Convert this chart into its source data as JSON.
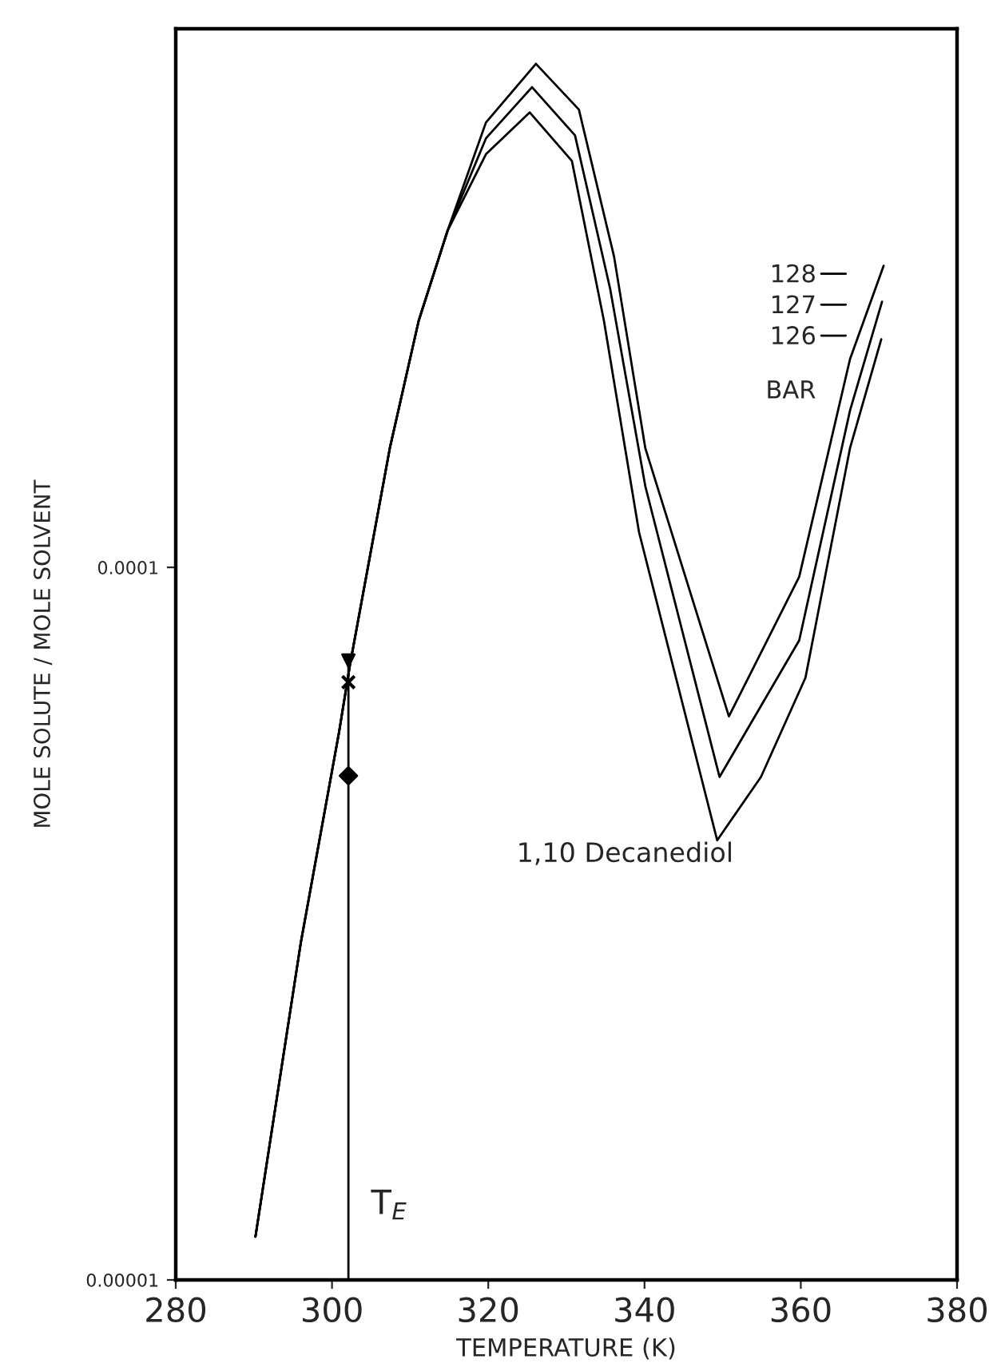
{
  "chart_data": {
    "type": "line",
    "xlabel": "TEMPERATURE (K)",
    "ylabel": "MOLE SOLUTE / MOLE SOLVENT",
    "xlim": [
      280,
      380
    ],
    "xticks": [
      280,
      300,
      320,
      340,
      360,
      380
    ],
    "ylim": [
      1e-05,
      0.00057
    ],
    "yticks": [
      {
        "value": 1e-05,
        "label": "0.00001"
      },
      {
        "value": 0.0001,
        "label": "0.0001"
      }
    ],
    "log": "y",
    "grid": false,
    "legend": "top right",
    "marker": "none",
    "line_style": "solid",
    "series": [
      {
        "name": "128",
        "color": "#000000",
        "x": [
          290.2,
          296.0,
          300.9,
          302.3,
          307.4,
          311.1,
          314.8,
          319.7,
          326.1,
          331.6,
          336.1,
          340.1,
          350.8,
          359.8,
          366.3,
          370.6
        ],
        "values": [
          1.15e-05,
          2.97e-05,
          5.87e-05,
          7.3e-05,
          0.000147,
          0.000222,
          0.000297,
          0.000421,
          0.000509,
          0.000439,
          0.000273,
          0.000147,
          6.18e-05,
          9.7e-05,
          0.000196,
          0.000265
        ]
      },
      {
        "name": "127",
        "color": "#000000",
        "x": [
          290.2,
          296.0,
          300.9,
          302.3,
          307.4,
          311.1,
          314.8,
          319.7,
          325.6,
          331.1,
          335.6,
          340.1,
          349.6,
          359.8,
          366.3,
          370.4
        ],
        "values": [
          1.15e-05,
          2.97e-05,
          5.87e-05,
          7.3e-05,
          0.000147,
          0.000222,
          0.000297,
          0.0004,
          0.000472,
          0.000404,
          0.000246,
          0.00013,
          5.08e-05,
          7.9e-05,
          0.000166,
          0.000236
        ]
      },
      {
        "name": "126",
        "color": "#000000",
        "x": [
          290.2,
          296.0,
          300.9,
          302.3,
          307.4,
          311.1,
          314.8,
          319.7,
          325.3,
          330.7,
          334.8,
          339.3,
          349.3,
          354.9,
          360.6,
          366.3,
          370.3
        ],
        "values": [
          1.15e-05,
          2.97e-05,
          5.87e-05,
          7.3e-05,
          0.000147,
          0.000222,
          0.000297,
          0.00038,
          0.000435,
          0.000372,
          0.000222,
          0.000112,
          4.14e-05,
          5.08e-05,
          7e-05,
          0.000147,
          0.000209
        ]
      },
      {
        "color": "#000000",
        "x": [
          302.1,
          302.1
        ],
        "values": [
          1e-05,
          7.4e-05
        ]
      },
      {
        "type": "scatter",
        "marker": "triangle",
        "color": "#000000",
        "x": [
          302.1
        ],
        "values": [
          7.4e-05
        ]
      },
      {
        "type": "scatter",
        "marker": "cross",
        "color": "#000000",
        "x": [
          302.1
        ],
        "values": [
          6.9e-05
        ]
      },
      {
        "type": "scatter",
        "marker": "diamond",
        "color": "#000000",
        "x": [
          302.1
        ],
        "values": [
          5.1e-05
        ]
      }
    ],
    "annotations": [
      "1,10 Decanediol",
      "BAR",
      "T$_{E}$"
    ]
  }
}
